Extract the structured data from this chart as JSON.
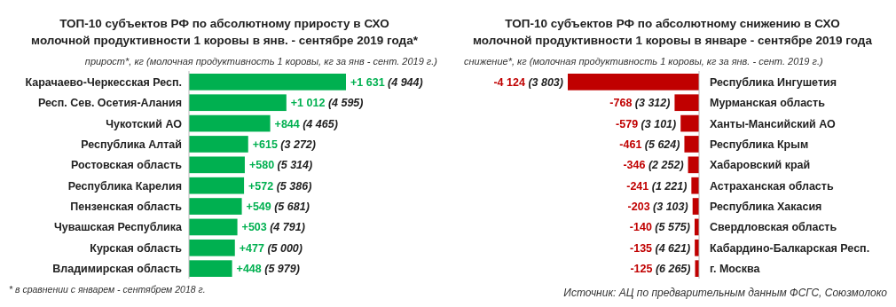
{
  "chart_data": [
    {
      "type": "bar",
      "orientation": "horizontal",
      "title": "ТОП-10 субъектов РФ по абсолютному приросту в СХО\nмолочной продуктивности 1 коровы в янв. - сентябре 2019 года*",
      "subtitle": "прирост*, кг (молочная продуктивность 1 коровы, кг за янв - сент. 2019 г.)",
      "categories": [
        "Карачаево-Черкесская Респ.",
        "Респ. Сев. Осетия-Алания",
        "Чукотский АО",
        "Республика Алтай",
        "Ростовская область",
        "Республика Карелия",
        "Пензенская область",
        "Чувашская Республика",
        "Курская область",
        "Владимирская область"
      ],
      "values": [
        1631,
        1012,
        844,
        615,
        580,
        572,
        549,
        503,
        477,
        448
      ],
      "value_labels": [
        "+1 631 (4 944)",
        "+1 012 (4 595)",
        "+844 (4 465)",
        "+615 (3 272)",
        "+580 (5 314)",
        "+572 (5 386)",
        "+549 (5 681)",
        "+503 (4 791)",
        "+477 (5 000)",
        "+448 (5 979)"
      ],
      "color": "#00b050",
      "annotations": [
        "* в сравнении с январем - сентябрем 2018 г."
      ]
    },
    {
      "type": "bar",
      "orientation": "horizontal",
      "title": "ТОП-10 субъектов РФ по абсолютному снижению в СХО\nмолочной продуктивности 1 коровы в январе - сентябре 2019 года",
      "subtitle": "снижение*, кг (молочная продуктивность 1 коровы, кг за янв. - сент. 2019 г.)",
      "categories": [
        "Республика Ингушетия",
        "Мурманская область",
        "Ханты-Мансийский АО",
        "Республика Крым",
        "Хабаровский край",
        "Астраханская область",
        "Республика Хакасия",
        "Свердловская область",
        "Кабардино-Балкарская Респ.",
        "г. Москва"
      ],
      "values": [
        -4124,
        -768,
        -579,
        -461,
        -346,
        -241,
        -203,
        -140,
        -135,
        -125
      ],
      "value_labels": [
        "-4 124 (3 803)",
        "-768 (3 312)",
        "-579 (3 101)",
        "-461 (5 624)",
        "-346 (2 252)",
        "-241 (1 221)",
        "-203 (3 103)",
        "-140 (5 575)",
        "-135 (4 621)",
        "-125 (6 265)"
      ],
      "color": "#c00000",
      "annotations": [
        "Источник: АЦ по предварительным данным ФСГС, Союзмолоко"
      ]
    }
  ]
}
